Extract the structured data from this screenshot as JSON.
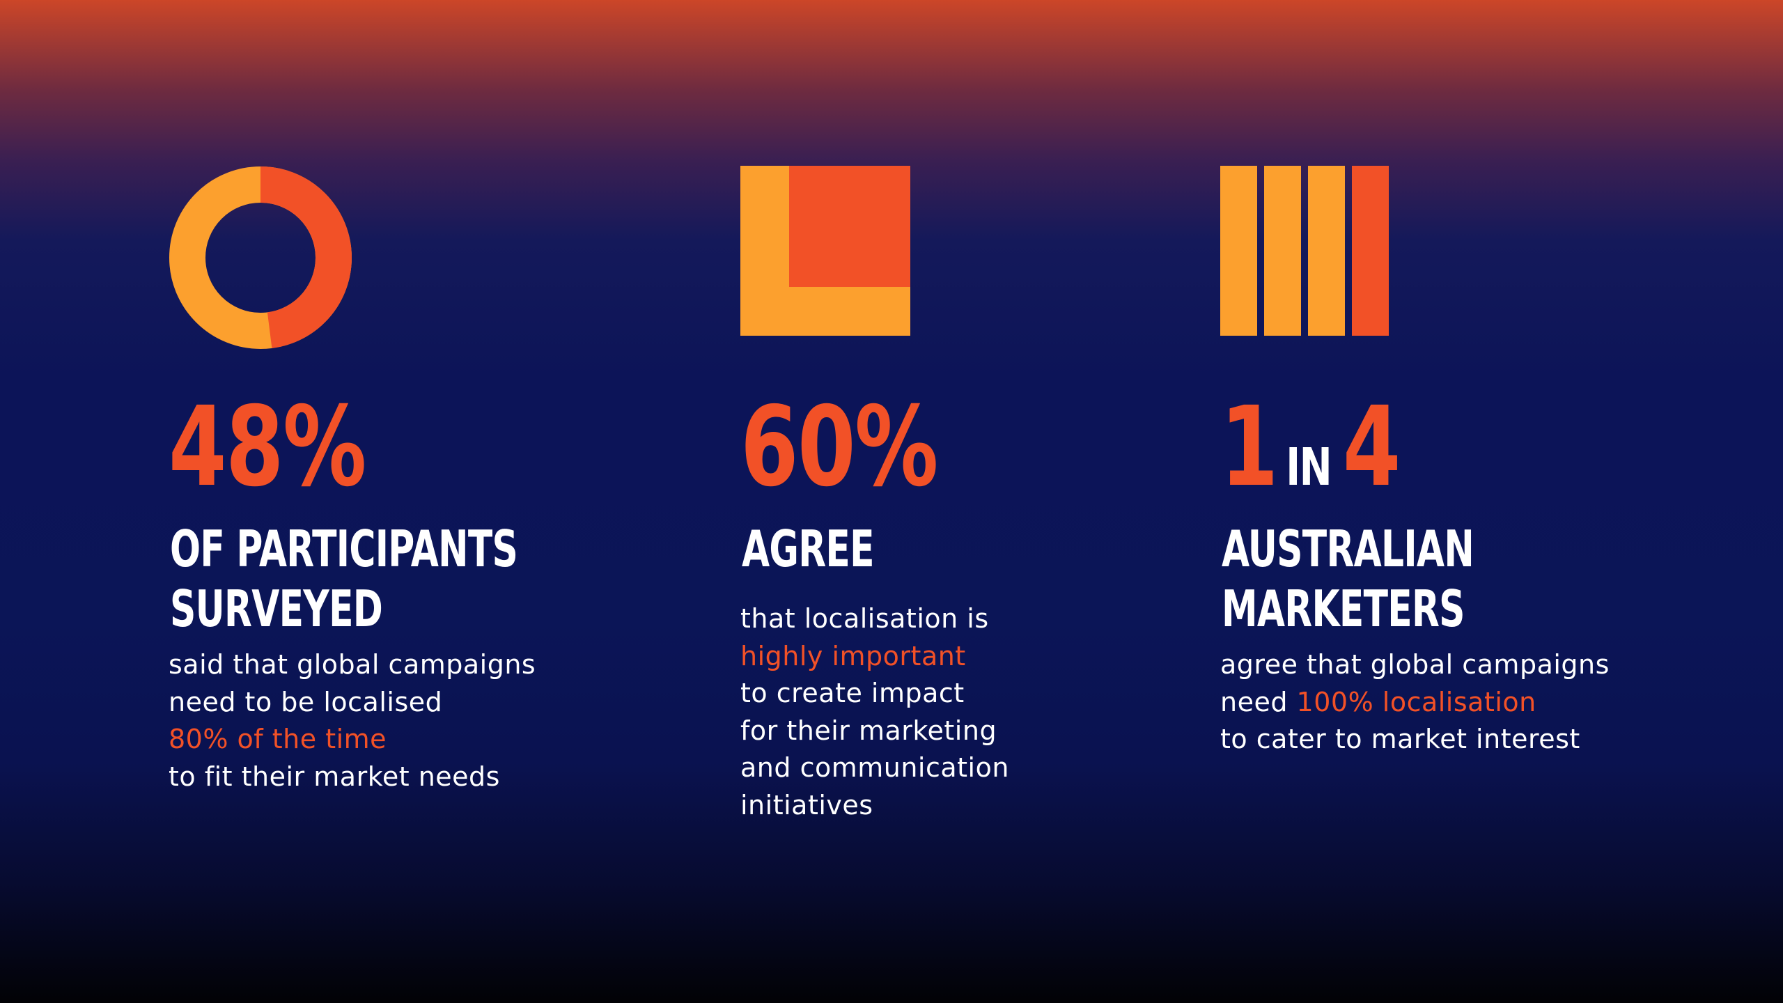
{
  "colors": {
    "accent": "#f25127",
    "secondary": "#fca02e",
    "text": "#ffffff",
    "background": "#0b1557"
  },
  "stats": [
    {
      "icon": "donut-icon",
      "value_fraction": 0.48,
      "big": "48%",
      "heading": [
        "OF PARTICIPANTS",
        "SURVEYED"
      ],
      "body": {
        "line1": "said that global campaigns",
        "line2": "need to be localised",
        "highlight": "80% of the time",
        "line4": "to fit their market needs"
      }
    },
    {
      "icon": "square-block-icon",
      "value_fraction": 0.6,
      "big": "60%",
      "heading": [
        "AGREE"
      ],
      "body": {
        "line1": "that localisation is",
        "highlight": "highly important",
        "line3": "to create impact",
        "line4": "for their marketing",
        "line5": "and communication",
        "line6": "initiatives"
      }
    },
    {
      "icon": "four-bars-icon",
      "value_ratio": "1 of 4",
      "big_num1": "1",
      "big_word": "IN",
      "big_num2": "4",
      "heading": [
        "AUSTRALIAN",
        "MARKETERS"
      ],
      "body": {
        "line1": "agree that global campaigns",
        "line2_pre": "need ",
        "highlight": "100% localisation",
        "line3": "to cater to market interest"
      }
    }
  ]
}
